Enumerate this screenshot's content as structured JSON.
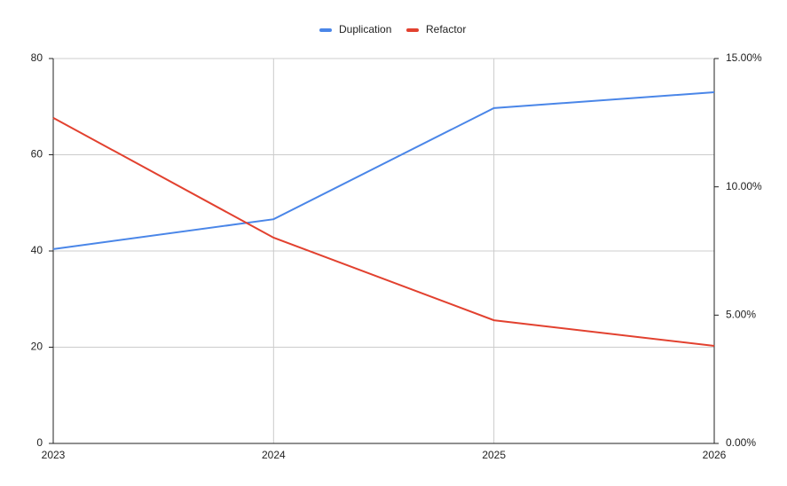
{
  "chart_data": {
    "type": "line",
    "x": [
      2023,
      2024,
      2025,
      2026
    ],
    "xlim": [
      2023,
      2026
    ],
    "xticks": [
      2023,
      2024,
      2025,
      2026
    ],
    "ylim": [
      0,
      80
    ],
    "yticks": [
      0,
      20,
      40,
      60,
      80
    ],
    "y2lim": [
      0,
      15
    ],
    "y2ticks": [
      {
        "value": 0,
        "label": "0.00%"
      },
      {
        "value": 5,
        "label": "5.00%"
      },
      {
        "value": 10,
        "label": "10.00%"
      },
      {
        "value": 15,
        "label": "15.00%"
      }
    ],
    "grid": true,
    "legend": "top",
    "series": [
      {
        "name": "Duplication",
        "color": "#4a86e8",
        "values": [
          40.4,
          46.6,
          69.7,
          73.0
        ]
      },
      {
        "name": "Refactor",
        "color": "#e2412f",
        "axis": "y2",
        "values": [
          12.69,
          8.02,
          4.8,
          3.8
        ]
      }
    ]
  }
}
